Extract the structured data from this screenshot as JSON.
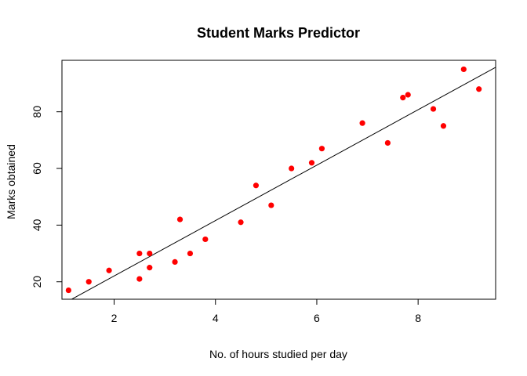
{
  "chart_data": {
    "type": "scatter",
    "title": "Student Marks Predictor",
    "xlabel": "No. of hours studied per day",
    "ylabel": "Marks obtained",
    "xlim": [
      0.97,
      9.53
    ],
    "ylim": [
      13.84,
      98.16
    ],
    "x_ticks": [
      "2",
      "4",
      "6",
      "8"
    ],
    "y_ticks": [
      "20",
      "40",
      "60",
      "80"
    ],
    "point_color": "#ff0000",
    "line_color": "#000000",
    "grid": false,
    "legend": "none",
    "points": [
      {
        "x": 1.1,
        "y": 17
      },
      {
        "x": 1.5,
        "y": 20
      },
      {
        "x": 1.9,
        "y": 24
      },
      {
        "x": 2.5,
        "y": 30
      },
      {
        "x": 2.5,
        "y": 21
      },
      {
        "x": 2.7,
        "y": 30
      },
      {
        "x": 2.7,
        "y": 25
      },
      {
        "x": 3.2,
        "y": 27
      },
      {
        "x": 3.3,
        "y": 42
      },
      {
        "x": 3.5,
        "y": 30
      },
      {
        "x": 3.8,
        "y": 35
      },
      {
        "x": 4.5,
        "y": 41
      },
      {
        "x": 4.8,
        "y": 54
      },
      {
        "x": 5.1,
        "y": 47
      },
      {
        "x": 5.5,
        "y": 60
      },
      {
        "x": 5.9,
        "y": 62
      },
      {
        "x": 6.1,
        "y": 67
      },
      {
        "x": 6.9,
        "y": 76
      },
      {
        "x": 7.4,
        "y": 69
      },
      {
        "x": 7.7,
        "y": 85
      },
      {
        "x": 7.8,
        "y": 86
      },
      {
        "x": 8.3,
        "y": 81
      },
      {
        "x": 8.5,
        "y": 75
      },
      {
        "x": 8.9,
        "y": 95
      },
      {
        "x": 9.2,
        "y": 88
      }
    ],
    "regression_line": {
      "intercept": 2.48,
      "slope": 9.78
    }
  }
}
